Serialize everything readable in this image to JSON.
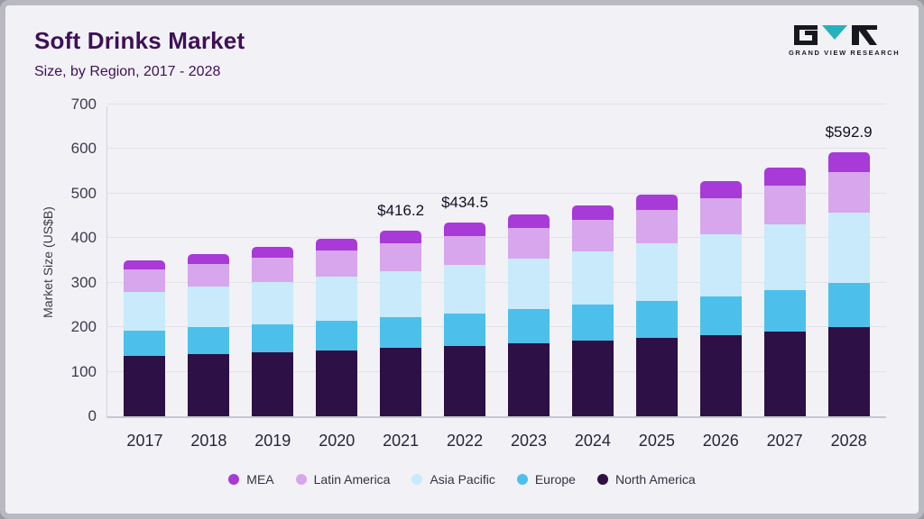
{
  "header": {
    "title": "Soft Drinks Market",
    "subtitle": "Size, by Region, 2017 - 2028"
  },
  "logo": {
    "text": "GRAND VIEW RESEARCH",
    "mark_color_dark": "#17171f",
    "mark_color_teal": "#27b1bd"
  },
  "chart_data": {
    "type": "bar",
    "stacked": true,
    "title": "Soft Drinks Market Size, by Region, 2017 - 2028",
    "xlabel": "",
    "ylabel": "Market Size (US$B)",
    "ylim": [
      0,
      700
    ],
    "yticks": [
      0,
      100,
      200,
      300,
      400,
      500,
      600,
      700
    ],
    "grid": true,
    "legend_position": "bottom",
    "categories": [
      "2017",
      "2018",
      "2019",
      "2020",
      "2021",
      "2022",
      "2023",
      "2024",
      "2025",
      "2026",
      "2027",
      "2028"
    ],
    "series": [
      {
        "name": "North America",
        "color": "#2d1045",
        "values": [
          135,
          139,
          143,
          148,
          153,
          158,
          164,
          170,
          176,
          182,
          190,
          200
        ]
      },
      {
        "name": "Europe",
        "color": "#4cc0ea",
        "values": [
          58,
          61,
          64,
          67,
          70,
          73,
          76,
          80,
          84,
          88,
          94,
          100
        ]
      },
      {
        "name": "Asia Pacific",
        "color": "#c8eafb",
        "values": [
          87,
          91,
          95,
          99,
          103,
          108,
          114,
          120,
          128,
          138,
          148,
          158
        ]
      },
      {
        "name": "Latin America",
        "color": "#d8a6ec",
        "values": [
          50,
          52,
          55,
          58,
          62,
          66,
          69,
          72,
          76,
          82,
          86,
          90
        ]
      },
      {
        "name": "MEA",
        "color": "#a83ad8",
        "values": [
          20,
          22,
          24,
          26,
          28.2,
          29.5,
          30,
          31,
          34,
          38,
          40,
          44.9
        ]
      }
    ],
    "totals": [
      350,
      365,
      381,
      398,
      416.2,
      434.5,
      453,
      473,
      498,
      528,
      558,
      592.9
    ],
    "annotations": [
      {
        "category": "2021",
        "text": "$416.2"
      },
      {
        "category": "2022",
        "text": "$434.5"
      },
      {
        "category": "2028",
        "text": "$592.9"
      }
    ],
    "legend": [
      "MEA",
      "Latin America",
      "Asia Pacific",
      "Europe",
      "North America"
    ]
  }
}
